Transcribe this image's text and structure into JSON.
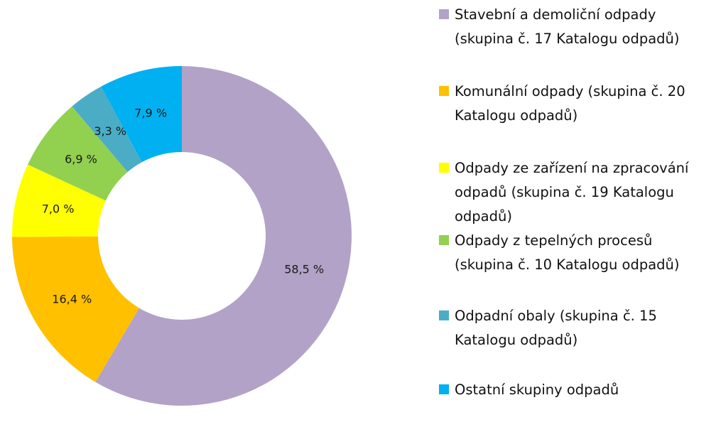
{
  "chart_data": {
    "type": "pie",
    "subtype": "donut",
    "title": "",
    "legend_position": "right",
    "start": "top",
    "direction": "clockwise",
    "slices": [
      {
        "name": "Stavební a demoliční odpady\n(skupina č. 17 Katalogu odpadů)",
        "value": 58.5,
        "label": "58,5 %",
        "color": "#b2a2c7"
      },
      {
        "name": "Komunální odpady (skupina č. 20\nKatalogu odpadů)",
        "value": 16.4,
        "label": "16,4 %",
        "color": "#ffc000"
      },
      {
        "name": "Odpady ze zařízení na zpracování\nodpadů (skupina č. 19 Katalogu\nodpadů)",
        "value": 7.0,
        "label": "7,0 %",
        "color": "#ffff00"
      },
      {
        "name": "Odpady z tepelných procesů\n(skupina č. 10 Katalogu odpadů)",
        "value": 6.9,
        "label": "6,9 %",
        "color": "#92d050"
      },
      {
        "name": "Odpadní obaly (skupina č. 15\nKatalogu odpadů)",
        "value": 3.3,
        "label": "3,3 %",
        "color": "#4bacc6"
      },
      {
        "name": "Ostatní skupiny odpadů",
        "value": 7.9,
        "label": "7,9 %",
        "color": "#00b0f0"
      }
    ]
  }
}
